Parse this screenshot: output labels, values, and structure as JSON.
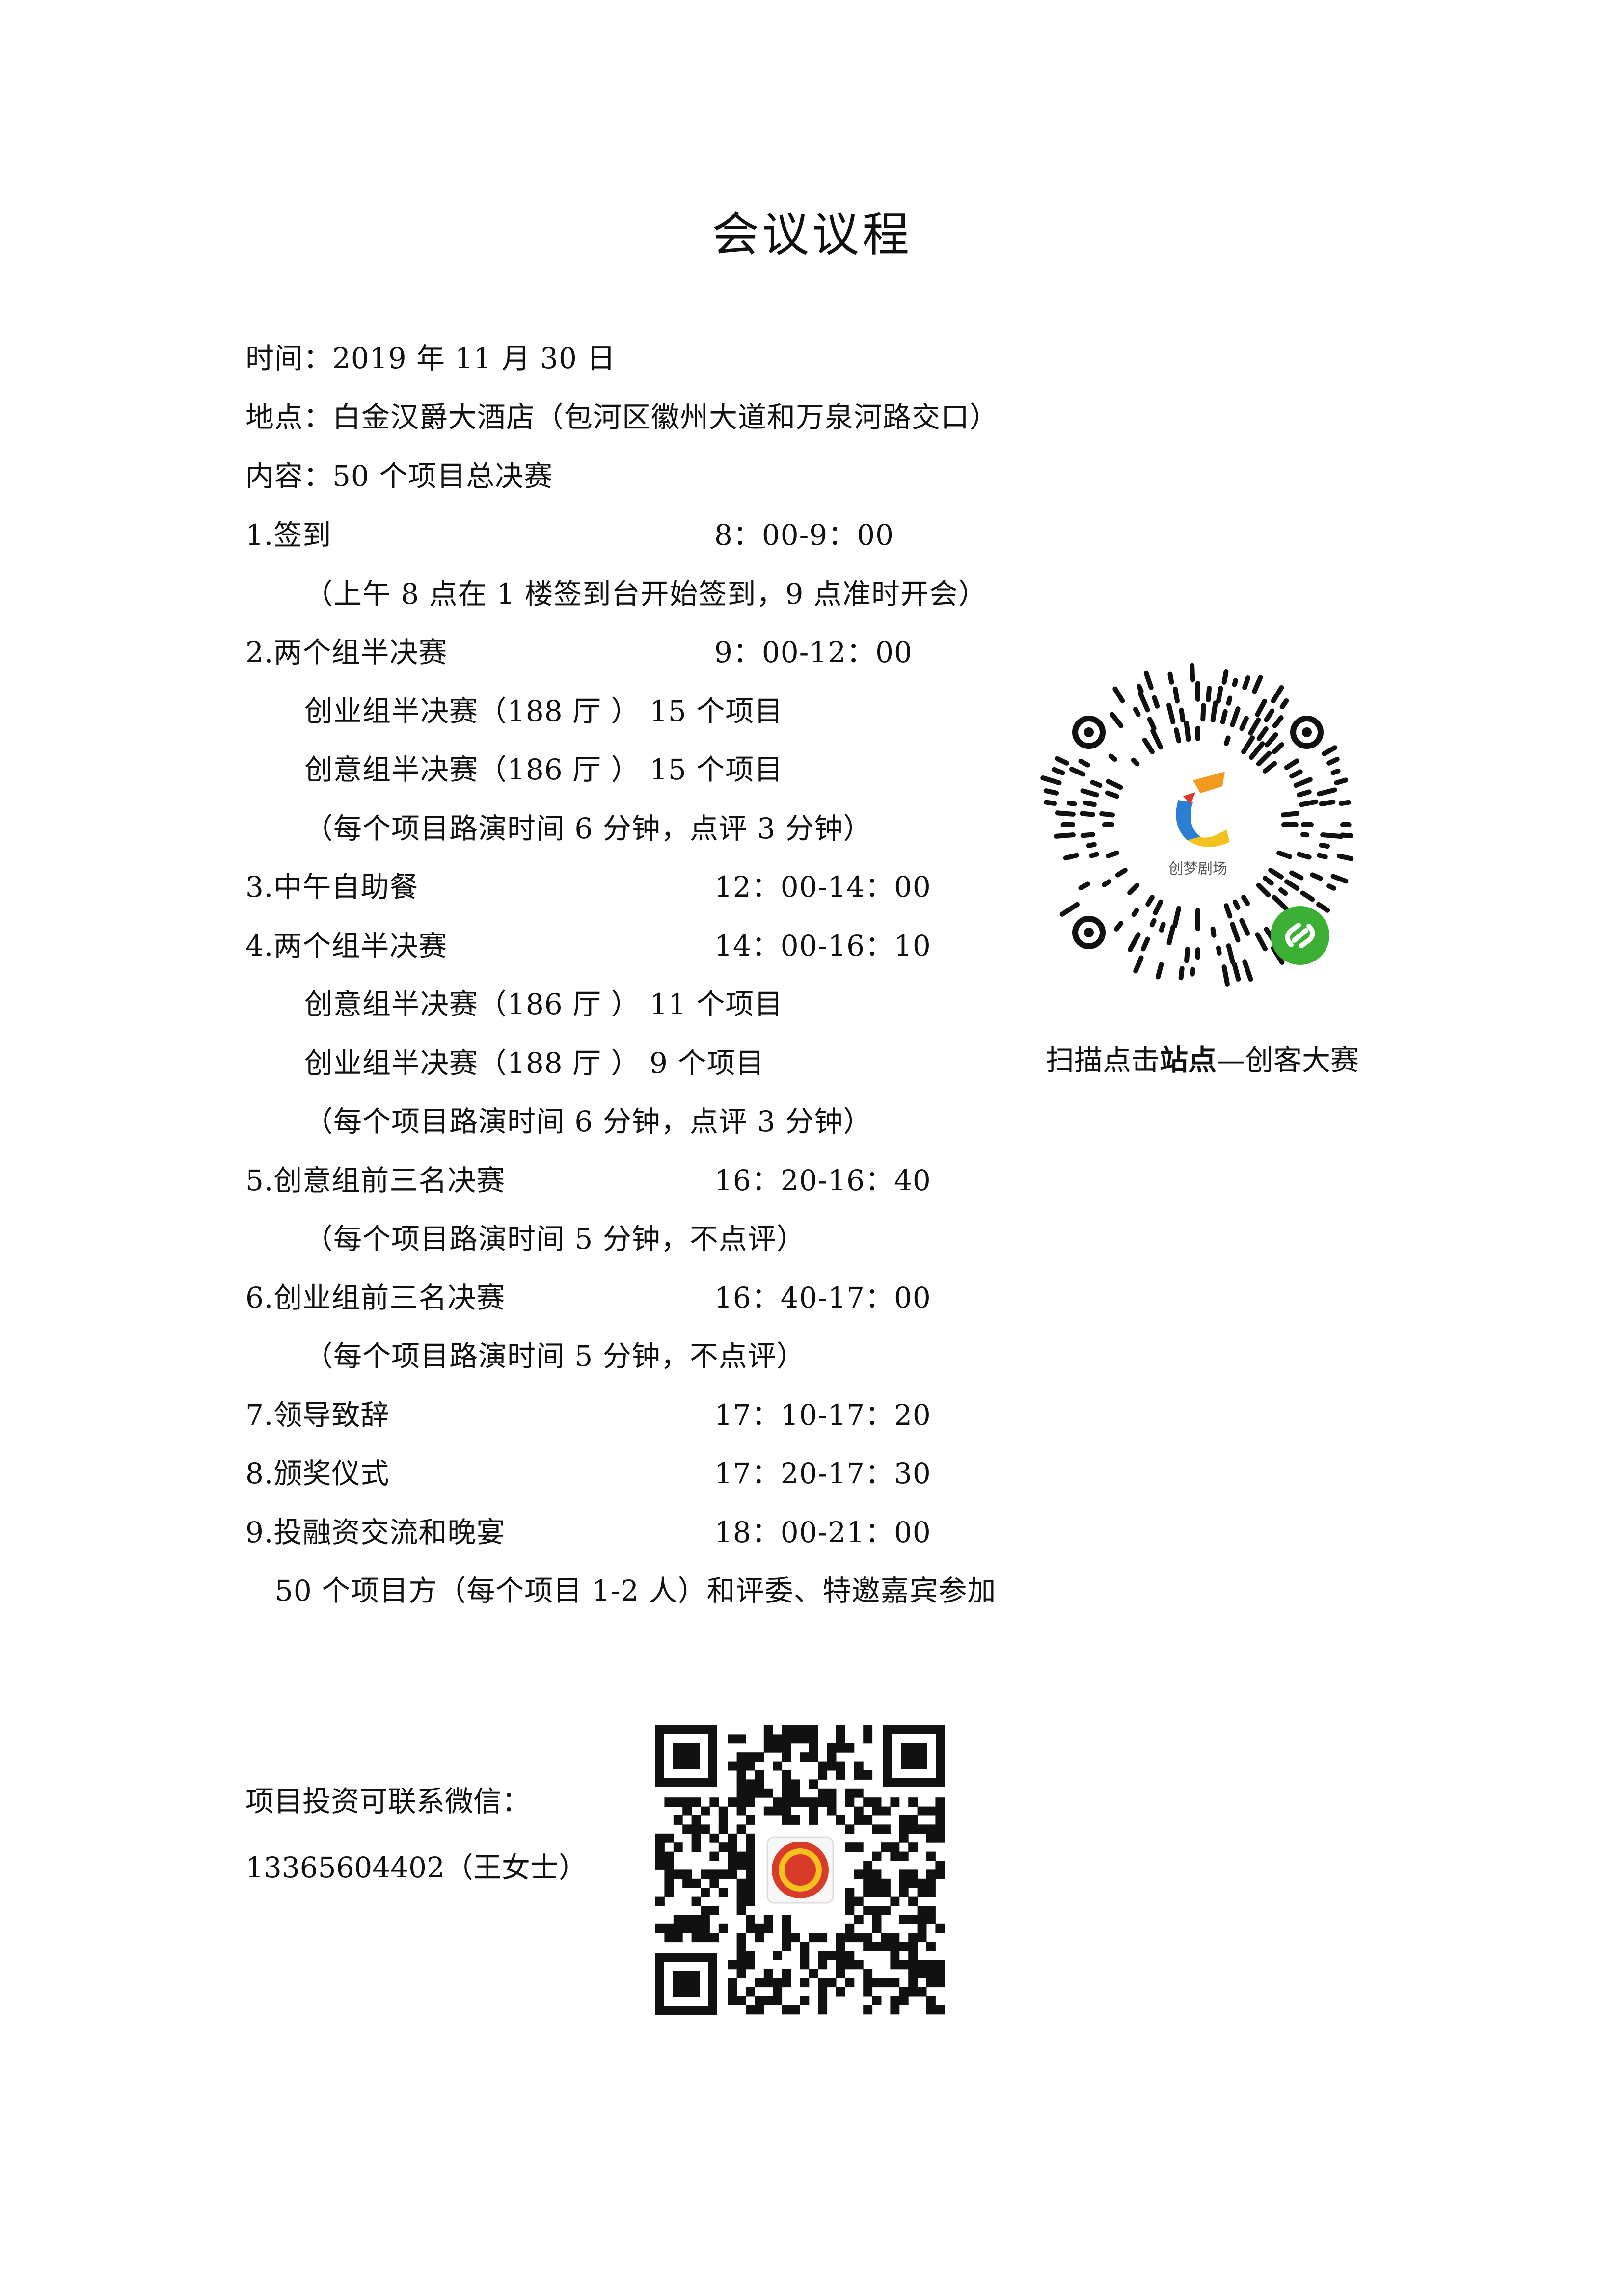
{
  "title": "会议议程",
  "info": {
    "time": "时间：2019 年 11 月 30 日",
    "place": "地点：白金汉爵大酒店（包河区徽州大道和万泉河路交口）",
    "content": "内容：50 个项目总决赛"
  },
  "agenda": [
    {
      "label": "1.签到",
      "time": "8：00-9：00"
    },
    {
      "note": "（上午 8 点在 1 楼签到台开始签到，9 点准时开会）"
    },
    {
      "label": "2.两个组半决赛",
      "time": "9：00-12：00"
    },
    {
      "sub": "创业组半决赛（188 厅 ） 15 个项目"
    },
    {
      "sub": "创意组半决赛（186 厅 ） 15 个项目"
    },
    {
      "note": "（每个项目路演时间 6 分钟，点评 3 分钟）"
    },
    {
      "label": "3.中午自助餐",
      "time": "12：00-14：00"
    },
    {
      "label": "4.两个组半决赛",
      "time": "14：00-16：10"
    },
    {
      "sub": "创意组半决赛（186 厅 ） 11 个项目"
    },
    {
      "sub": "创业组半决赛（188 厅 ） 9 个项目"
    },
    {
      "note": "（每个项目路演时间 6 分钟，点评 3 分钟）"
    },
    {
      "label": "5.创意组前三名决赛",
      "time": "16：20-16：40"
    },
    {
      "note": "（每个项目路演时间 5 分钟，不点评）"
    },
    {
      "label": "6.创业组前三名决赛",
      "time": "16：40-17：00"
    },
    {
      "note": "（每个项目路演时间 5 分钟，不点评）"
    },
    {
      "label": "7.领导致辞",
      "time": "17：10-17：20"
    },
    {
      "label": "8.颁奖仪式",
      "time": "17：20-17：30"
    },
    {
      "label": "9.投融资交流和晚宴",
      "time": "18：00-21：00"
    },
    {
      "extra": "50 个项目方（每个项目 1-2 人）和评委、特邀嘉宾参加"
    }
  ],
  "miniprogram": {
    "logo_text": "创梦剧场",
    "caption_prefix": "扫描点击",
    "caption_bold": "站点",
    "caption_suffix": "—创客大赛"
  },
  "contact": {
    "label": "项目投资可联系微信：",
    "phone": "13365604402（王女士）"
  },
  "colors": {
    "text": "#111111",
    "wechat_green": "#3cb034",
    "logo_blue": "#2a7fd4",
    "logo_orange": "#f39a1e",
    "logo_red": "#d93b2b"
  }
}
